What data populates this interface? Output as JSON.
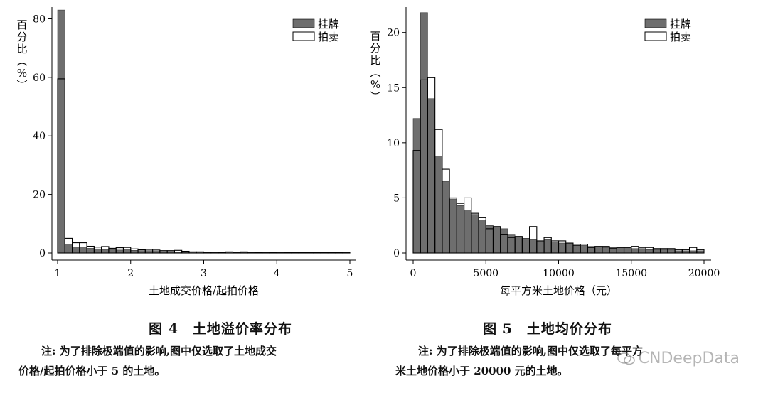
{
  "chart_data": [
    {
      "type": "bar",
      "ylabel": "百分比（%）",
      "xlabel": "土地成交价格/起拍价格",
      "xlim": [
        1,
        5
      ],
      "ylim": [
        0,
        84
      ],
      "x_ticks": [
        "1",
        "2",
        "3",
        "4",
        "5"
      ],
      "y_ticks": [
        "0",
        "20",
        "40",
        "60",
        "80"
      ],
      "bin_width": 0.1,
      "legend": "top-right",
      "colors": {
        "挂牌": "#6e6e6e",
        "拍卖": "#ffffff"
      },
      "series": [
        {
          "name": "挂牌",
          "values": [
            83.0,
            3.0,
            2.0,
            2.0,
            1.6,
            1.4,
            1.2,
            1.1,
            1.0,
            1.1,
            0.9,
            0.8,
            0.8,
            0.6,
            0.5,
            0.5,
            0.4,
            0.4,
            0.3,
            0.3,
            0.2,
            0.2,
            0.2,
            0.3,
            0.2,
            0.2,
            0.2,
            0.2,
            0.2,
            0.2,
            0.2,
            0.2,
            0.2,
            0.2,
            0.2,
            0.2,
            0.2,
            0.2,
            0.2,
            0.2
          ]
        },
        {
          "name": "拍卖",
          "values": [
            59.5,
            5.0,
            3.5,
            3.5,
            2.3,
            2.0,
            2.2,
            1.6,
            1.8,
            1.9,
            1.4,
            1.1,
            1.2,
            1.0,
            0.8,
            0.8,
            0.9,
            0.6,
            0.4,
            0.4,
            0.3,
            0.3,
            0.2,
            0.4,
            0.3,
            0.4,
            0.3,
            0.2,
            0.3,
            0.2,
            0.3,
            0.2,
            0.2,
            0.2,
            0.2,
            0.2,
            0.2,
            0.2,
            0.2,
            0.3
          ]
        }
      ]
    },
    {
      "type": "bar",
      "ylabel": "百分比（%）",
      "xlabel": "每平方米土地价格（元）",
      "xlim": [
        0,
        20000
      ],
      "ylim": [
        0,
        22.3
      ],
      "x_ticks": [
        "0",
        "5000",
        "10000",
        "15000",
        "20000"
      ],
      "y_ticks": [
        "0",
        "5",
        "10",
        "15",
        "20"
      ],
      "bin_width": 500,
      "legend": "top-right",
      "colors": {
        "挂牌": "#6e6e6e",
        "拍卖": "#ffffff"
      },
      "series": [
        {
          "name": "挂牌",
          "values": [
            12.2,
            21.8,
            14.0,
            8.8,
            6.5,
            4.9,
            4.3,
            3.9,
            3.5,
            3.0,
            2.5,
            2.4,
            2.2,
            1.7,
            1.5,
            1.3,
            1.2,
            1.1,
            1.2,
            1.0,
            0.9,
            0.9,
            0.7,
            0.7,
            0.6,
            0.6,
            0.5,
            0.5,
            0.5,
            0.5,
            0.4,
            0.4,
            0.3,
            0.3,
            0.3,
            0.3,
            0.2,
            0.2,
            0.2,
            0.2
          ]
        },
        {
          "name": "拍卖",
          "values": [
            9.3,
            15.7,
            15.9,
            11.2,
            7.6,
            5.0,
            4.5,
            5.0,
            3.6,
            3.2,
            2.2,
            2.4,
            1.7,
            1.4,
            1.5,
            1.3,
            2.4,
            1.1,
            1.4,
            1.1,
            1.1,
            0.9,
            0.7,
            0.8,
            0.5,
            0.6,
            0.6,
            0.4,
            0.5,
            0.5,
            0.6,
            0.5,
            0.5,
            0.4,
            0.4,
            0.4,
            0.3,
            0.3,
            0.5,
            0.3
          ]
        }
      ]
    }
  ],
  "figures": [
    {
      "caption": "图 4　土地溢价率分布",
      "note_line1": "注: 为了排除极端值的影响,图中仅选取了土地成交",
      "note_line2": "价格/起拍价格小于 5 的土地。"
    },
    {
      "caption": "图 5　土地均价分布",
      "note_line1": "注: 为了排除极端值的影响,图中仅选取了每平方",
      "note_line2": "米土地价格小于 20000 元的土地。"
    }
  ],
  "watermark": "CNDeepData"
}
